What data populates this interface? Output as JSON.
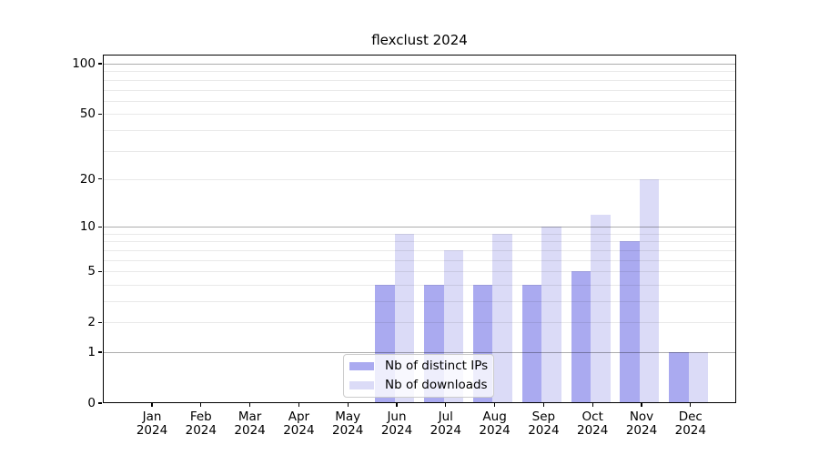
{
  "figure": {
    "background": "#ffffff"
  },
  "chart_data": {
    "type": "bar",
    "title": "flexclust 2024",
    "categories": [
      "Jan",
      "Feb",
      "Mar",
      "Apr",
      "May",
      "Jun",
      "Jul",
      "Aug",
      "Sep",
      "Oct",
      "Nov",
      "Dec"
    ],
    "x_year": "2024",
    "series": [
      {
        "name": "Nb of distinct IPs",
        "color": "#aaaaf0",
        "values": [
          0,
          0,
          0,
          0,
          0,
          4,
          4,
          4,
          4,
          5,
          8,
          1
        ]
      },
      {
        "name": "Nb of downloads",
        "color": "#dbdbf7",
        "values": [
          0,
          0,
          0,
          0,
          0,
          9,
          7,
          9,
          10,
          12,
          20,
          1
        ]
      }
    ],
    "yscale": "log1p",
    "ylim": [
      0,
      113
    ],
    "yticks": [
      "0",
      "1",
      "2",
      "5",
      "10",
      "20",
      "50",
      "100"
    ],
    "grid_values": [
      1,
      2,
      3,
      4,
      5,
      6,
      7,
      8,
      9,
      10,
      20,
      30,
      40,
      50,
      60,
      70,
      80,
      90,
      100
    ],
    "grid_major": [
      1,
      10,
      100
    ],
    "grid": true,
    "legend_position": "lower center",
    "xlabel": "",
    "ylabel": ""
  }
}
